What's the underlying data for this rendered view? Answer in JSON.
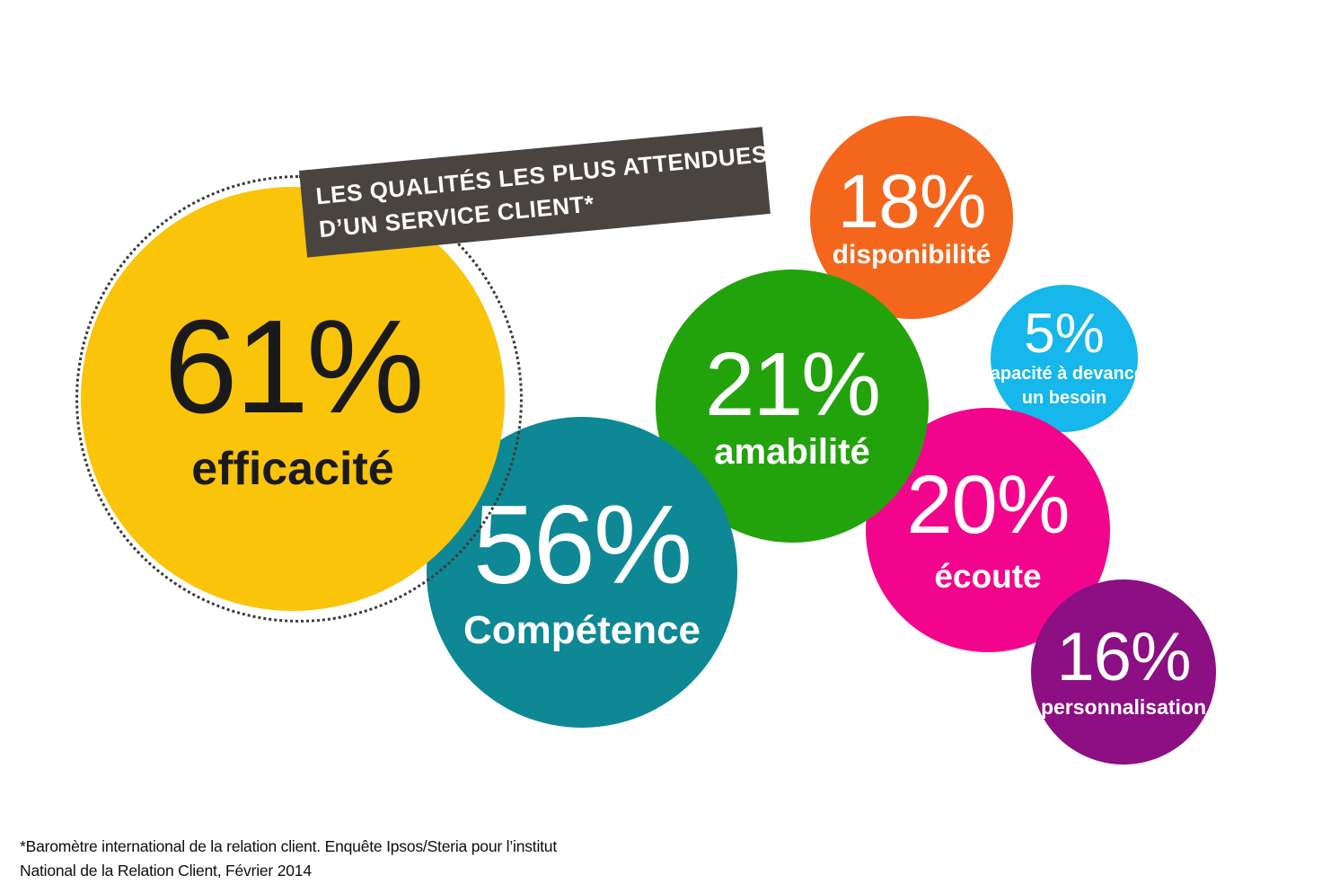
{
  "title": {
    "line1": "LES QUALITÉS LES PLUS ATTENDUES",
    "line2": "D’UN SERVICE CLIENT*"
  },
  "banner_color": "#4A4440",
  "bubbles": [
    {
      "id": "efficacite",
      "pct": "61%",
      "label": "efficacité",
      "color": "#FAC40A",
      "text_color": "#1A1A1A"
    },
    {
      "id": "competence",
      "pct": "56%",
      "label": "Compétence",
      "color": "#0E8895",
      "text_color": "#FFFFFF"
    },
    {
      "id": "amabilite",
      "pct": "21%",
      "label": "amabilité",
      "color": "#22A30B",
      "text_color": "#FFFFFF"
    },
    {
      "id": "disponibilite",
      "pct": "18%",
      "label": "disponibilité",
      "color": "#F4661C",
      "text_color": "#FFFFFF"
    },
    {
      "id": "capacite",
      "pct": "5%",
      "label_line1": "Capacité à devancer",
      "label_line2": "un besoin",
      "color": "#16B7EA",
      "text_color": "#FFFFFF"
    },
    {
      "id": "ecoute",
      "pct": "20%",
      "label": "écoute",
      "color": "#F2058C",
      "text_color": "#FFFFFF"
    },
    {
      "id": "personnalisation",
      "pct": "16%",
      "label": "personnalisation",
      "color": "#8C0F83",
      "text_color": "#FFFFFF"
    }
  ],
  "footnote": {
    "line1": "*Baromètre international de la relation client. Enquête Ipsos/Steria pour l’institut",
    "line2": "National de la Relation Client, Février 2014"
  },
  "chart_data": {
    "type": "bubble",
    "title": "LES QUALITÉS LES PLUS ATTENDUES D’UN SERVICE CLIENT*",
    "unit": "%",
    "items": [
      {
        "label": "efficacité",
        "value": 61,
        "color": "#FAC40A"
      },
      {
        "label": "Compétence",
        "value": 56,
        "color": "#0E8895"
      },
      {
        "label": "amabilité",
        "value": 21,
        "color": "#22A30B"
      },
      {
        "label": "écoute",
        "value": 20,
        "color": "#F2058C"
      },
      {
        "label": "disponibilité",
        "value": 18,
        "color": "#F4661C"
      },
      {
        "label": "personnalisation",
        "value": 16,
        "color": "#8C0F83"
      },
      {
        "label": "Capacité à devancer un besoin",
        "value": 5,
        "color": "#16B7EA"
      }
    ],
    "footnote": "*Baromètre international de la relation client. Enquête Ipsos/Steria pour l’institut National de la Relation Client, Février 2014",
    "layout": "proportional-area bubbles, largest at left, white background"
  }
}
